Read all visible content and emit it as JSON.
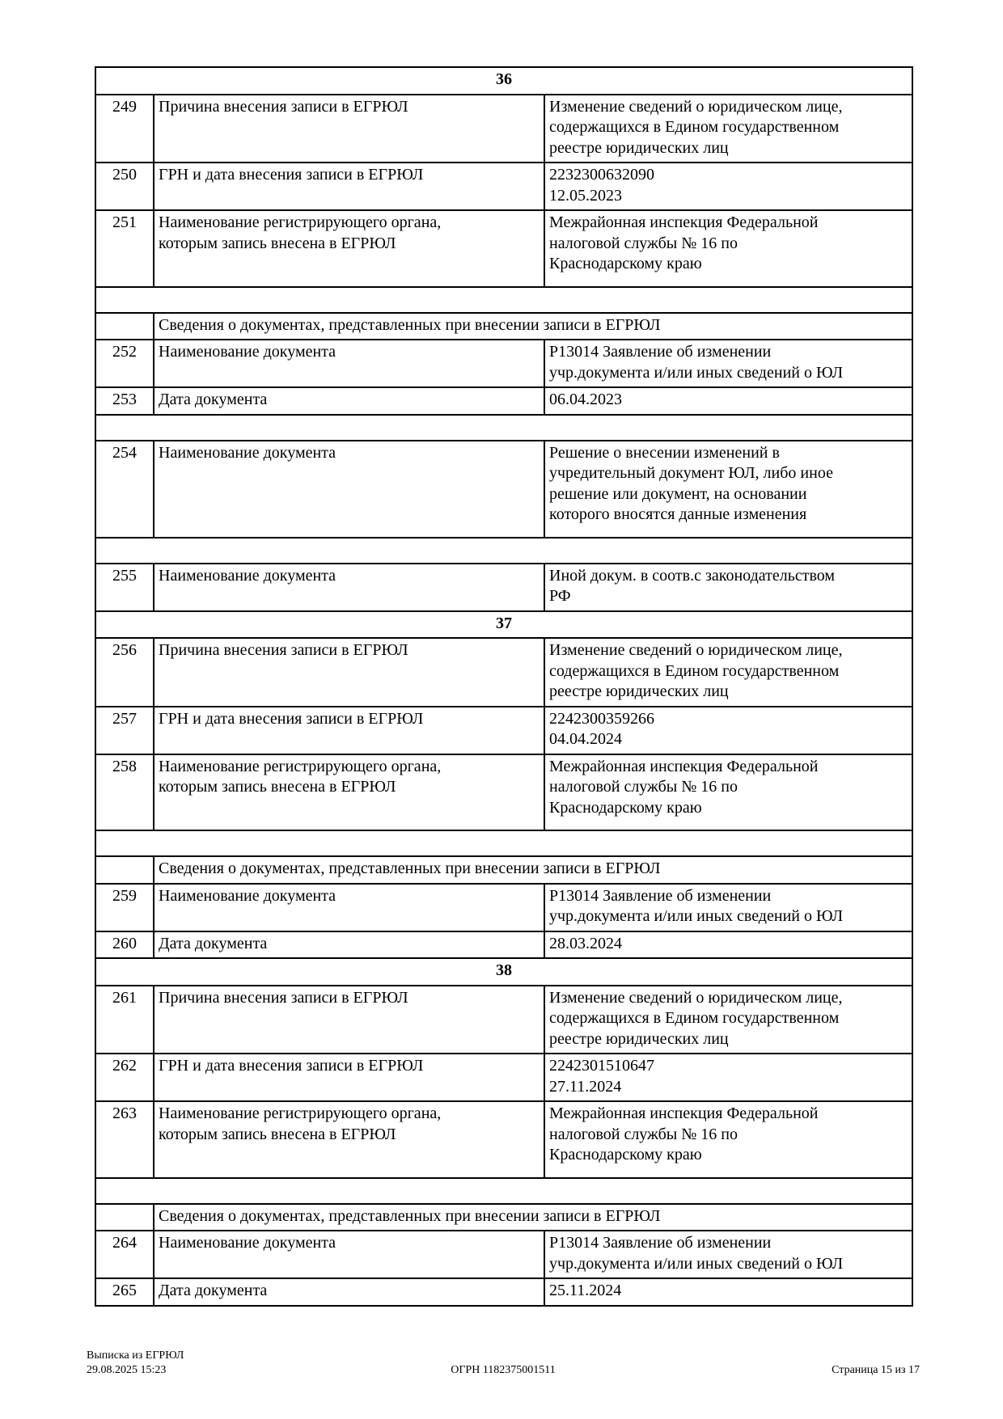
{
  "colors": {
    "background": "#ffffff",
    "border": "#000000",
    "text": "#000000"
  },
  "table": {
    "rows": [
      {
        "type": "section",
        "num": "36"
      },
      {
        "type": "record",
        "num": "249",
        "label_lines": [
          "Причина внесения записи в ЕГРЮЛ"
        ],
        "value_lines": [
          "Изменение сведений о юридическом лице,",
          "содержащихся в Едином государственном",
          "реестре юридических лиц"
        ]
      },
      {
        "type": "record",
        "num": "250",
        "label_lines": [
          "ГРН и дата внесения записи в ЕГРЮЛ"
        ],
        "value_lines": [
          "2232300632090",
          "12.05.2023"
        ]
      },
      {
        "type": "record",
        "num": "251",
        "pad": true,
        "label_lines": [
          "Наименование регистрирующего органа,",
          "которым запись внесена в ЕГРЮЛ"
        ],
        "value_lines": [
          "Межрайонная инспекция Федеральной",
          "налоговой службы № 16 по",
          "Краснодарскому краю"
        ]
      },
      {
        "type": "gap"
      },
      {
        "type": "subheader",
        "label": "Сведения о документах, представленных при внесении записи в ЕГРЮЛ"
      },
      {
        "type": "record",
        "num": "252",
        "label_lines": [
          "Наименование документа"
        ],
        "value_lines": [
          "Р13014 Заявление об изменении",
          "учр.документа и/или иных сведений о ЮЛ"
        ]
      },
      {
        "type": "record",
        "num": "253",
        "label_lines": [
          "Дата документа"
        ],
        "value_lines": [
          "06.04.2023"
        ]
      },
      {
        "type": "gap"
      },
      {
        "type": "record",
        "num": "254",
        "pad": true,
        "label_lines": [
          "Наименование документа"
        ],
        "value_lines": [
          "Решение о внесении изменений в",
          "учредительный документ ЮЛ, либо иное",
          "решение или документ, на основании",
          "которого вносятся данные изменения"
        ]
      },
      {
        "type": "gap"
      },
      {
        "type": "record",
        "num": "255",
        "label_lines": [
          "Наименование документа"
        ],
        "value_lines": [
          "Иной докум. в соотв.с законодательством",
          "РФ"
        ]
      },
      {
        "type": "section",
        "num": "37"
      },
      {
        "type": "record",
        "num": "256",
        "label_lines": [
          "Причина внесения записи в ЕГРЮЛ"
        ],
        "value_lines": [
          "Изменение сведений о юридическом лице,",
          "содержащихся в Едином государственном",
          "реестре юридических лиц"
        ]
      },
      {
        "type": "record",
        "num": "257",
        "label_lines": [
          "ГРН и дата внесения записи в ЕГРЮЛ"
        ],
        "value_lines": [
          "2242300359266",
          "04.04.2024"
        ]
      },
      {
        "type": "record",
        "num": "258",
        "pad": true,
        "label_lines": [
          "Наименование регистрирующего органа,",
          "которым запись внесена в ЕГРЮЛ"
        ],
        "value_lines": [
          "Межрайонная инспекция Федеральной",
          "налоговой службы № 16 по",
          "Краснодарскому краю"
        ]
      },
      {
        "type": "gap"
      },
      {
        "type": "subheader",
        "label": "Сведения о документах, представленных при внесении записи в ЕГРЮЛ"
      },
      {
        "type": "record",
        "num": "259",
        "label_lines": [
          "Наименование документа"
        ],
        "value_lines": [
          "Р13014 Заявление об изменении",
          "учр.документа и/или иных сведений о ЮЛ"
        ]
      },
      {
        "type": "record",
        "num": "260",
        "label_lines": [
          "Дата документа"
        ],
        "value_lines": [
          "28.03.2024"
        ]
      },
      {
        "type": "section",
        "num": "38"
      },
      {
        "type": "record",
        "num": "261",
        "label_lines": [
          "Причина внесения записи в ЕГРЮЛ"
        ],
        "value_lines": [
          "Изменение сведений о юридическом лице,",
          "содержащихся в Едином государственном",
          "реестре юридических лиц"
        ]
      },
      {
        "type": "record",
        "num": "262",
        "label_lines": [
          "ГРН и дата внесения записи в ЕГРЮЛ"
        ],
        "value_lines": [
          "2242301510647",
          "27.11.2024"
        ]
      },
      {
        "type": "record",
        "num": "263",
        "pad": true,
        "label_lines": [
          "Наименование регистрирующего органа,",
          "которым запись внесена в ЕГРЮЛ"
        ],
        "value_lines": [
          "Межрайонная инспекция Федеральной",
          "налоговой службы № 16 по",
          "Краснодарскому краю"
        ]
      },
      {
        "type": "gap"
      },
      {
        "type": "subheader",
        "label": "Сведения о документах, представленных при внесении записи в ЕГРЮЛ"
      },
      {
        "type": "record",
        "num": "264",
        "label_lines": [
          "Наименование документа"
        ],
        "value_lines": [
          "Р13014 Заявление об изменении",
          "учр.документа и/или иных сведений о ЮЛ"
        ]
      },
      {
        "type": "record",
        "num": "265",
        "label_lines": [
          "Дата документа"
        ],
        "value_lines": [
          "25.11.2024"
        ]
      }
    ]
  },
  "footer": {
    "doc_type": "Выписка из ЕГРЮЛ",
    "generated_at": "29.08.2025 15:23",
    "ogrn_line": "ОГРН 1182375001511",
    "page_info": "Страница 15 из 17"
  }
}
